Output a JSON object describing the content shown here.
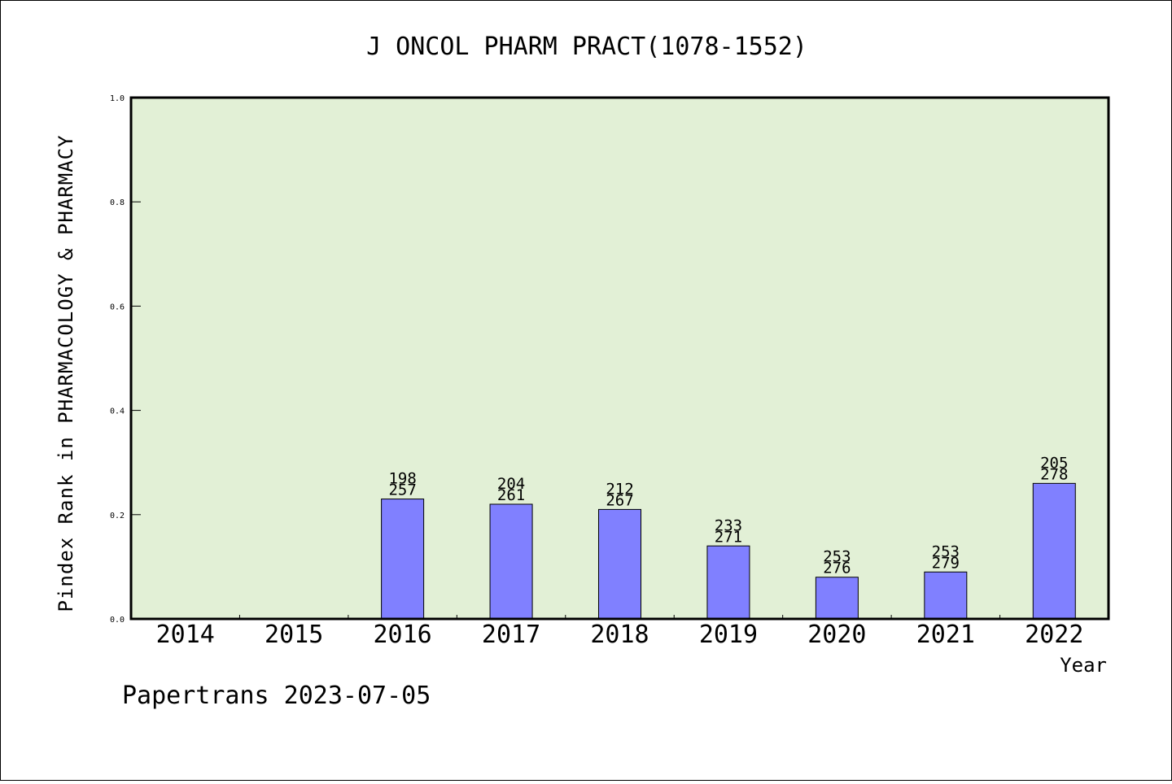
{
  "chart_data": {
    "type": "bar",
    "title": "J ONCOL PHARM PRACT(1078-1552)",
    "xlabel": "Year",
    "ylabel": "Pindex Rank in PHARMACOLOGY & PHARMACY",
    "categories": [
      "2014",
      "2015",
      "2016",
      "2017",
      "2018",
      "2019",
      "2020",
      "2021",
      "2022"
    ],
    "values": [
      null,
      null,
      0.23,
      0.22,
      0.21,
      0.14,
      0.08,
      0.09,
      0.26
    ],
    "labels_top": [
      "",
      "",
      "198",
      "204",
      "212",
      "233",
      "253",
      "253",
      "205"
    ],
    "labels_bottom": [
      "",
      "",
      "257",
      "261",
      "267",
      "271",
      "276",
      "279",
      "278"
    ],
    "ylim": [
      0,
      1.0
    ],
    "yticks": [
      "0.0",
      "0.2",
      "0.4",
      "0.6",
      "0.8",
      "1.0"
    ],
    "plot_background": "#e2f0d6",
    "bar_color": "#8080ff",
    "grid": false
  },
  "footer": "Papertrans 2023-07-05"
}
